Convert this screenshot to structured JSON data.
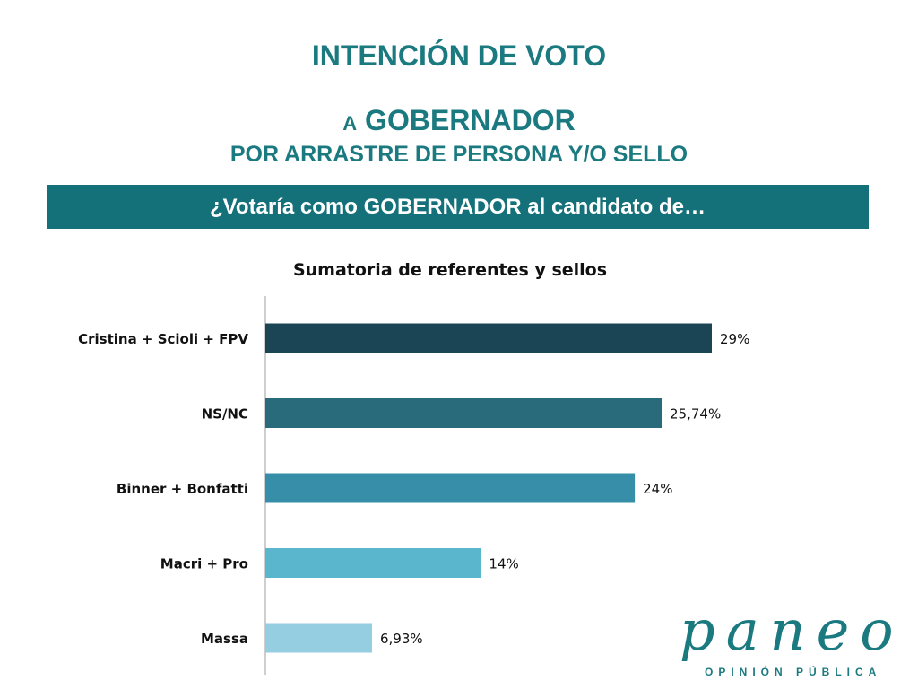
{
  "header": {
    "title": "INTENCIÓN DE VOTO",
    "subtitle_prefix": "A",
    "subtitle_main": "GOBERNADOR",
    "subtitle_line2": "POR ARRASTRE DE PERSONA Y/O SELLO",
    "question": "¿Votaría como GOBERNADOR al candidato de…"
  },
  "chart_data": {
    "type": "bar",
    "orientation": "horizontal",
    "title": "Sumatoria de referentes y sellos",
    "categories": [
      "Cristina + Scioli + FPV",
      "NS/NC",
      "Binner + Bonfatti",
      "Macri + Pro",
      "Massa"
    ],
    "values": [
      29,
      25.74,
      24,
      14,
      6.93
    ],
    "value_labels": [
      "29%",
      "25,74%",
      "24%",
      "14%",
      "6,93%"
    ],
    "colors": [
      "#1b4454",
      "#296b7a",
      "#378ea8",
      "#59b6cd",
      "#94cee0"
    ],
    "xlim": [
      0,
      35
    ],
    "grid": false,
    "legend": "none"
  },
  "logo": {
    "word": "paneo",
    "tagline": "OPINIÓN PÚBLICA"
  }
}
